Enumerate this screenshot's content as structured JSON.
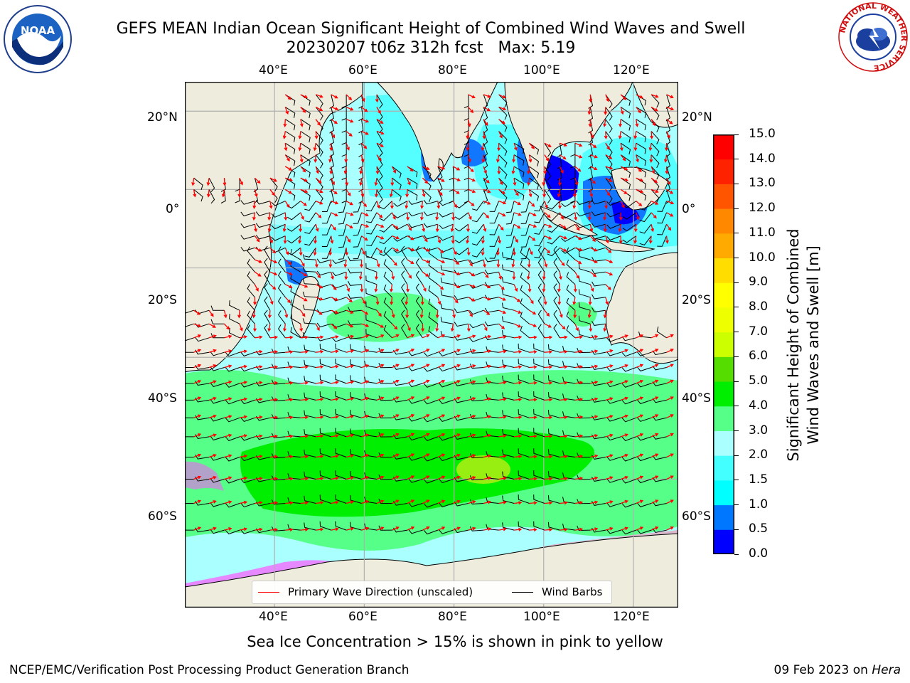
{
  "title": {
    "line1": "GEFS MEAN Indian Ocean Significant Height of Combined Wind Waves and Swell",
    "line2": "20230207 t06z 312h fcst",
    "max": "Max: 5.19"
  },
  "logos": {
    "noaa": "NOAA",
    "nws_ring": "NATIONAL WEATHER SERVICE"
  },
  "map": {
    "projection": "Mercator",
    "lon_range": [
      20,
      130
    ],
    "lat_range": [
      -73,
      27
    ],
    "lon_ticks": [
      "40°E",
      "60°E",
      "80°E",
      "100°E",
      "120°E"
    ],
    "lat_ticks_left": [
      "20°N",
      "0°",
      "20°S",
      "40°S",
      "60°S"
    ],
    "lat_ticks_right": [
      "20°N",
      "0°",
      "20°S",
      "40°S",
      "60°S"
    ],
    "gridlines": true,
    "colors": {
      "land": "#eeecdd",
      "coast": "#000000",
      "grid": "#b0b0b0",
      "wave_arrow": "#ff0000",
      "wind_barb": "#000000"
    }
  },
  "legend": {
    "wave_label": "Primary Wave Direction (unscaled)",
    "barb_label": "Wind Barbs",
    "wave_color": "#ff0000",
    "barb_color": "#000000"
  },
  "colorbar": {
    "label_line1": "Significant Height of Combined",
    "label_line2": "Wind Waves and Swell [m]",
    "ticks": [
      "0.0",
      "0.5",
      "1.0",
      "1.5",
      "2.0",
      "3.0",
      "4.0",
      "5.0",
      "6.0",
      "7.0",
      "8.0",
      "9.0",
      "10.0",
      "11.0",
      "12.0",
      "13.0",
      "14.0",
      "15.0"
    ],
    "colors": [
      "#0000ff",
      "#0077ff",
      "#00ffff",
      "#44ffff",
      "#aaffff",
      "#55ff88",
      "#00ee00",
      "#55dd00",
      "#ccff00",
      "#eeff00",
      "#ffff00",
      "#ffdd00",
      "#ffaa00",
      "#ff8800",
      "#ff5500",
      "#ff2200",
      "#ff0000"
    ]
  },
  "caption": "Sea Ice Concentration > 15% is shown in pink to yellow",
  "footer": {
    "left": "NCEP/EMC/Verification Post Processing Product Generation Branch",
    "date": "09 Feb 2023 on",
    "machine": "Hera"
  }
}
